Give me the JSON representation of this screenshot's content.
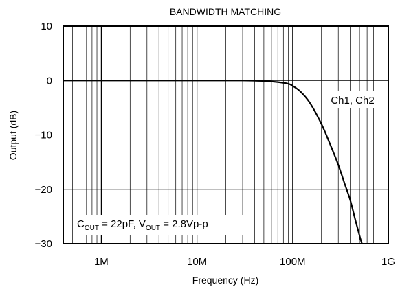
{
  "chart_data": {
    "type": "line",
    "title": "BANDWIDTH MATCHING",
    "xlabel": "Frequency (Hz)",
    "ylabel": "Output (dB)",
    "x_scale": "log",
    "xlim": [
      400000,
      1000000000
    ],
    "ylim": [
      -30,
      10
    ],
    "grid": true,
    "x_ticks": [
      {
        "value": 1000000,
        "label": "1M"
      },
      {
        "value": 10000000,
        "label": "10M"
      },
      {
        "value": 100000000,
        "label": "100M"
      },
      {
        "value": 1000000000,
        "label": "1G"
      }
    ],
    "y_ticks": [
      {
        "value": 10,
        "label": "10"
      },
      {
        "value": 0,
        "label": "0"
      },
      {
        "value": -10,
        "label": "−10"
      },
      {
        "value": -20,
        "label": "−20"
      },
      {
        "value": -30,
        "label": "−30"
      }
    ],
    "series": [
      {
        "name": "Ch1, Ch2",
        "x": [
          400000,
          1000000,
          10000000,
          30000000,
          50000000,
          70000000,
          90000000,
          100000000,
          120000000,
          150000000,
          200000000,
          250000000,
          300000000,
          350000000,
          400000000,
          450000000,
          500000000,
          530000000
        ],
        "y": [
          0,
          0,
          0,
          0,
          -0.1,
          -0.3,
          -0.6,
          -1,
          -2,
          -4,
          -8,
          -12,
          -15.5,
          -19,
          -22,
          -25.5,
          -28.5,
          -30
        ]
      }
    ],
    "annotations": {
      "series_label": "Ch1, Ch2",
      "conditions": {
        "c_main": "C",
        "c_sub": "OUT",
        "c_val": " = 22pF, V",
        "v_sub": "OUT",
        "v_val": " = 2.8Vp-p"
      }
    }
  }
}
